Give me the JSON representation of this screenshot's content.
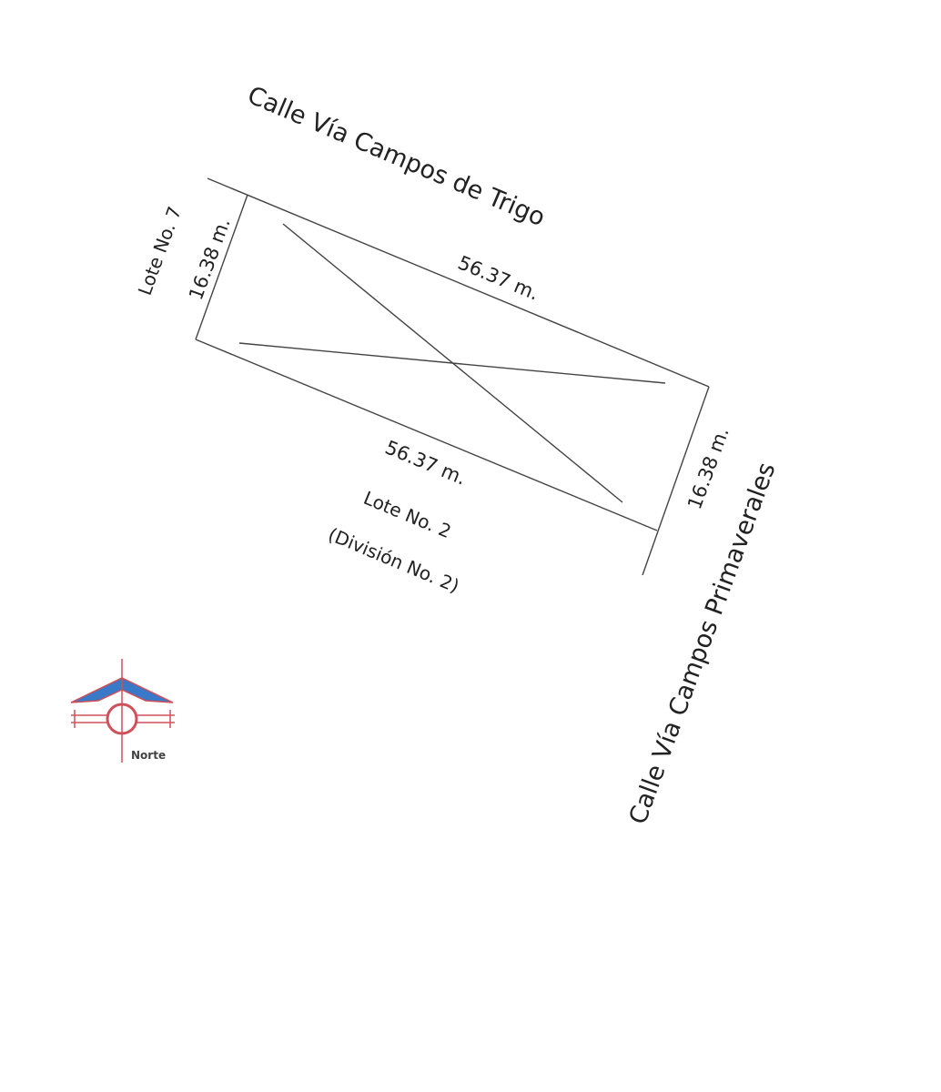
{
  "streets": {
    "north": "Calle Vía Campos de Trigo",
    "east": "Calle Vía Campos Primaverales"
  },
  "dimensions": {
    "top": "56.37 m.",
    "bottom": "56.37 m.",
    "left": "16.38 m.",
    "right": "16.38 m."
  },
  "neighbors": {
    "left": "Lote No. 7",
    "bottom": "Lote No. 2",
    "bottom_sub": "(División No. 2)"
  },
  "north_arrow": {
    "label": "Norte",
    "colors": {
      "red": "#d0505a",
      "blue": "#3a78c8"
    }
  },
  "colors": {
    "line": "#444444",
    "text": "#222222"
  }
}
